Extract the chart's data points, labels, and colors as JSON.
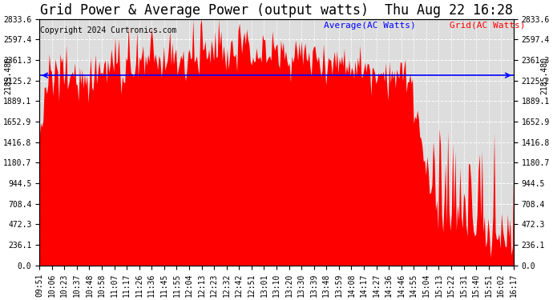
{
  "title": "Grid Power & Average Power (output watts)  Thu Aug 22 16:28",
  "copyright": "Copyright 2024 Curtronics.com",
  "average_value": 2185.48,
  "average_label": "2185.480",
  "ylim": [
    0,
    2833.6
  ],
  "yticks": [
    0.0,
    236.1,
    472.3,
    708.4,
    944.5,
    1180.7,
    1416.8,
    1652.9,
    1889.1,
    2125.2,
    2361.3,
    2597.4,
    2833.6
  ],
  "legend_average_label": "Average(AC Watts)",
  "legend_grid_label": "Grid(AC Watts)",
  "average_line_color": "blue",
  "fill_color": "red",
  "grid_color": "white",
  "background_color": "#dddddd",
  "xtick_labels": [
    "09:51",
    "10:06",
    "10:23",
    "10:37",
    "10:48",
    "10:58",
    "11:07",
    "11:17",
    "11:26",
    "11:36",
    "11:45",
    "11:55",
    "12:04",
    "12:13",
    "12:23",
    "12:32",
    "12:42",
    "12:51",
    "13:01",
    "13:10",
    "13:20",
    "13:30",
    "13:39",
    "13:48",
    "13:59",
    "14:08",
    "14:17",
    "14:27",
    "14:36",
    "14:46",
    "14:55",
    "15:04",
    "15:13",
    "15:22",
    "15:31",
    "15:40",
    "15:51",
    "16:02",
    "16:17"
  ],
  "title_fontsize": 12,
  "copyright_fontsize": 7,
  "legend_fontsize": 8,
  "tick_fontsize": 7,
  "figsize": [
    6.9,
    3.75
  ],
  "dpi": 100
}
